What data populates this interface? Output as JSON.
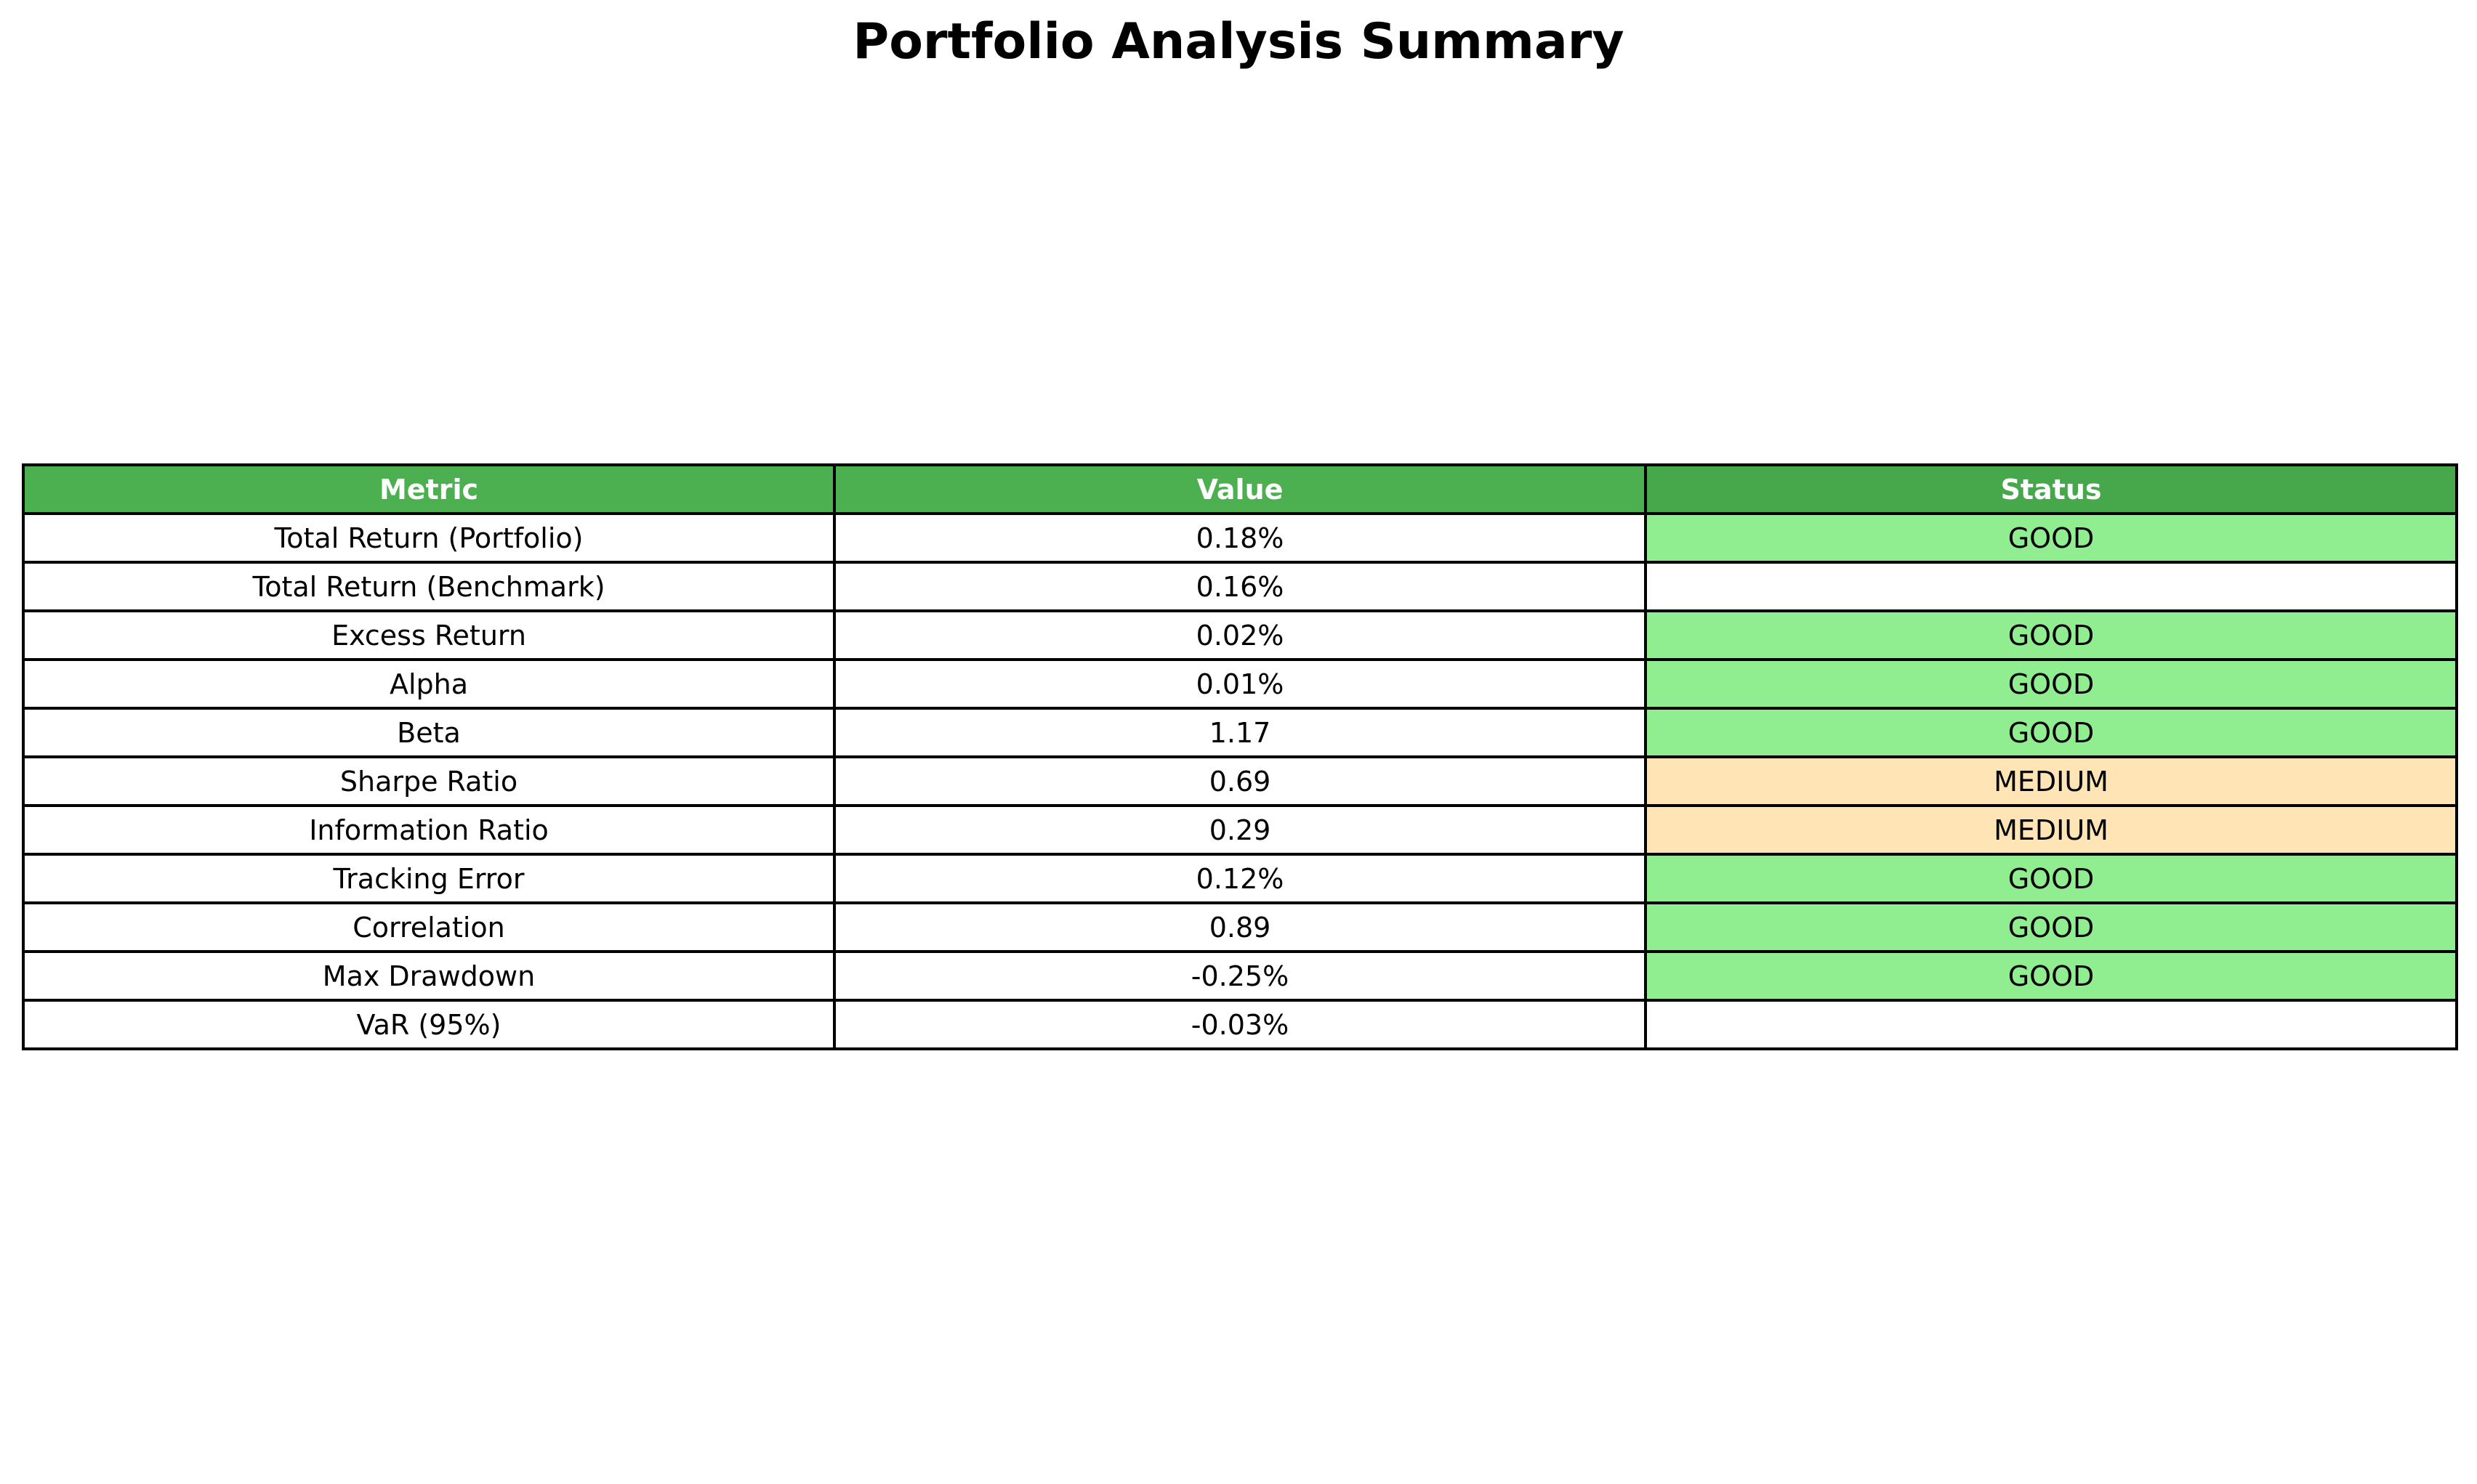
{
  "chart_data": {
    "type": "table",
    "title": "Portfolio Analysis Summary",
    "columns": [
      "Metric",
      "Value",
      "Status"
    ],
    "rows": [
      {
        "metric": "Total Return (Portfolio)",
        "value": "0.18%",
        "status": "GOOD"
      },
      {
        "metric": "Total Return (Benchmark)",
        "value": "0.16%",
        "status": ""
      },
      {
        "metric": "Excess Return",
        "value": "0.02%",
        "status": "GOOD"
      },
      {
        "metric": "Alpha",
        "value": "0.01%",
        "status": "GOOD"
      },
      {
        "metric": "Beta",
        "value": "1.17",
        "status": "GOOD"
      },
      {
        "metric": "Sharpe Ratio",
        "value": "0.69",
        "status": "MEDIUM"
      },
      {
        "metric": "Information Ratio",
        "value": "0.29",
        "status": "MEDIUM"
      },
      {
        "metric": "Tracking Error",
        "value": "0.12%",
        "status": "GOOD"
      },
      {
        "metric": "Correlation",
        "value": "0.89",
        "status": "GOOD"
      },
      {
        "metric": "Max Drawdown",
        "value": "-0.25%",
        "status": "GOOD"
      },
      {
        "metric": "VaR (95%)",
        "value": "-0.03%",
        "status": ""
      }
    ],
    "colors": {
      "header_background": "#4caf50",
      "header_text": "#ffffff",
      "status_good": "#90ee90",
      "status_medium": "#ffe4b5",
      "status_empty": "#ffffff",
      "border": "#000000"
    }
  }
}
